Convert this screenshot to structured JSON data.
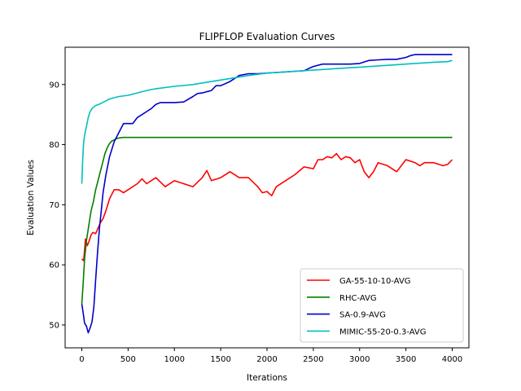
{
  "chart_data": {
    "type": "line",
    "title": "FLIPFLOP Evaluation Curves",
    "xlabel": "Iterations",
    "ylabel": "Evaluation Values",
    "xlim": [
      -180,
      4180
    ],
    "ylim": [
      46.2,
      96.2
    ],
    "xticks": [
      0,
      500,
      1000,
      1500,
      2000,
      2500,
      3000,
      3500,
      4000
    ],
    "yticks": [
      50,
      60,
      70,
      80,
      90
    ],
    "grid": false,
    "legend_position": "lower-right",
    "series": [
      {
        "name": "GA-55-10-10-AVG",
        "color": "#ff0000",
        "x": [
          0,
          20,
          40,
          60,
          80,
          100,
          120,
          150,
          180,
          200,
          230,
          260,
          300,
          350,
          400,
          450,
          500,
          600,
          650,
          700,
          800,
          900,
          1000,
          1100,
          1200,
          1300,
          1350,
          1400,
          1500,
          1600,
          1700,
          1800,
          1900,
          1950,
          2000,
          2050,
          2100,
          2200,
          2300,
          2400,
          2500,
          2550,
          2600,
          2650,
          2700,
          2750,
          2800,
          2850,
          2900,
          2950,
          3000,
          3050,
          3100,
          3150,
          3200,
          3300,
          3400,
          3500,
          3600,
          3650,
          3700,
          3800,
          3900,
          3950,
          4000
        ],
        "y": [
          61,
          60.7,
          64.3,
          63.2,
          64,
          65,
          65.4,
          65.2,
          66.3,
          67,
          67.7,
          69,
          71,
          72.5,
          72.5,
          72,
          72.5,
          73.5,
          74.3,
          73.5,
          74.5,
          73,
          74,
          73.5,
          73,
          74.5,
          75.7,
          74,
          74.5,
          75.5,
          74.5,
          74.5,
          73,
          72,
          72.2,
          71.5,
          73,
          74,
          75,
          76.3,
          76,
          77.5,
          77.5,
          78,
          77.8,
          78.5,
          77.5,
          78,
          77.8,
          77,
          77.5,
          75.5,
          74.5,
          75.5,
          77,
          76.5,
          75.5,
          77.5,
          77,
          76.5,
          77,
          77,
          76.5,
          76.7,
          77.5
        ]
      },
      {
        "name": "RHC-AVG",
        "color": "#008000",
        "x": [
          0,
          15,
          30,
          50,
          75,
          100,
          125,
          150,
          175,
          200,
          225,
          250,
          275,
          300,
          325,
          350,
          375,
          400,
          450,
          500,
          1000,
          2000,
          3000,
          4000
        ],
        "y": [
          53.5,
          57,
          61,
          64,
          66.5,
          69,
          70.5,
          72.5,
          74,
          75.5,
          77,
          78.5,
          79.5,
          80.2,
          80.6,
          80.8,
          81.0,
          81.1,
          81.2,
          81.2,
          81.2,
          81.2,
          81.2,
          81.2
        ]
      },
      {
        "name": "SA-0.9-AVG",
        "color": "#0000cc",
        "x": [
          0,
          15,
          30,
          50,
          70,
          90,
          110,
          130,
          150,
          170,
          190,
          210,
          230,
          260,
          300,
          350,
          400,
          450,
          500,
          550,
          600,
          650,
          700,
          750,
          800,
          850,
          900,
          1000,
          1100,
          1200,
          1250,
          1300,
          1400,
          1450,
          1500,
          1600,
          1700,
          1800,
          1900,
          2000,
          2100,
          2200,
          2300,
          2400,
          2500,
          2600,
          2700,
          2800,
          2900,
          3000,
          3100,
          3200,
          3300,
          3400,
          3500,
          3550,
          3600,
          3700,
          3800,
          3900,
          4000
        ],
        "y": [
          53.5,
          52,
          50.3,
          49.8,
          48.7,
          49.5,
          50.5,
          53,
          57.5,
          62,
          66,
          69,
          72,
          75,
          78,
          80.5,
          82,
          83.5,
          83.5,
          83.5,
          84.5,
          85,
          85.5,
          86,
          86.7,
          87,
          87,
          87,
          87.1,
          88,
          88.5,
          88.6,
          89,
          89.8,
          89.8,
          90.5,
          91.5,
          91.8,
          91.8,
          91.9,
          92,
          92.1,
          92.2,
          92.3,
          93,
          93.4,
          93.4,
          93.4,
          93.4,
          93.5,
          94,
          94.1,
          94.2,
          94.2,
          94.5,
          94.8,
          95,
          95,
          95,
          95,
          95
        ]
      },
      {
        "name": "MIMIC-55-20-0.3-AVG",
        "color": "#00bfbf",
        "x": [
          0,
          10,
          20,
          35,
          50,
          70,
          90,
          110,
          130,
          150,
          200,
          250,
          300,
          350,
          400,
          500,
          600,
          700,
          800,
          1000,
          1200,
          1400,
          1600,
          1800,
          2000,
          2200,
          2400,
          2600,
          2800,
          3000,
          3200,
          3400,
          3600,
          3800,
          3950,
          4000
        ],
        "y": [
          73.5,
          77.5,
          80.5,
          82,
          83,
          84.5,
          85.5,
          86,
          86.3,
          86.5,
          86.8,
          87.2,
          87.6,
          87.8,
          88,
          88.2,
          88.6,
          89,
          89.3,
          89.7,
          90,
          90.5,
          91,
          91.5,
          91.9,
          92.1,
          92.3,
          92.5,
          92.7,
          92.9,
          93.1,
          93.3,
          93.5,
          93.7,
          93.8,
          94
        ]
      }
    ]
  }
}
